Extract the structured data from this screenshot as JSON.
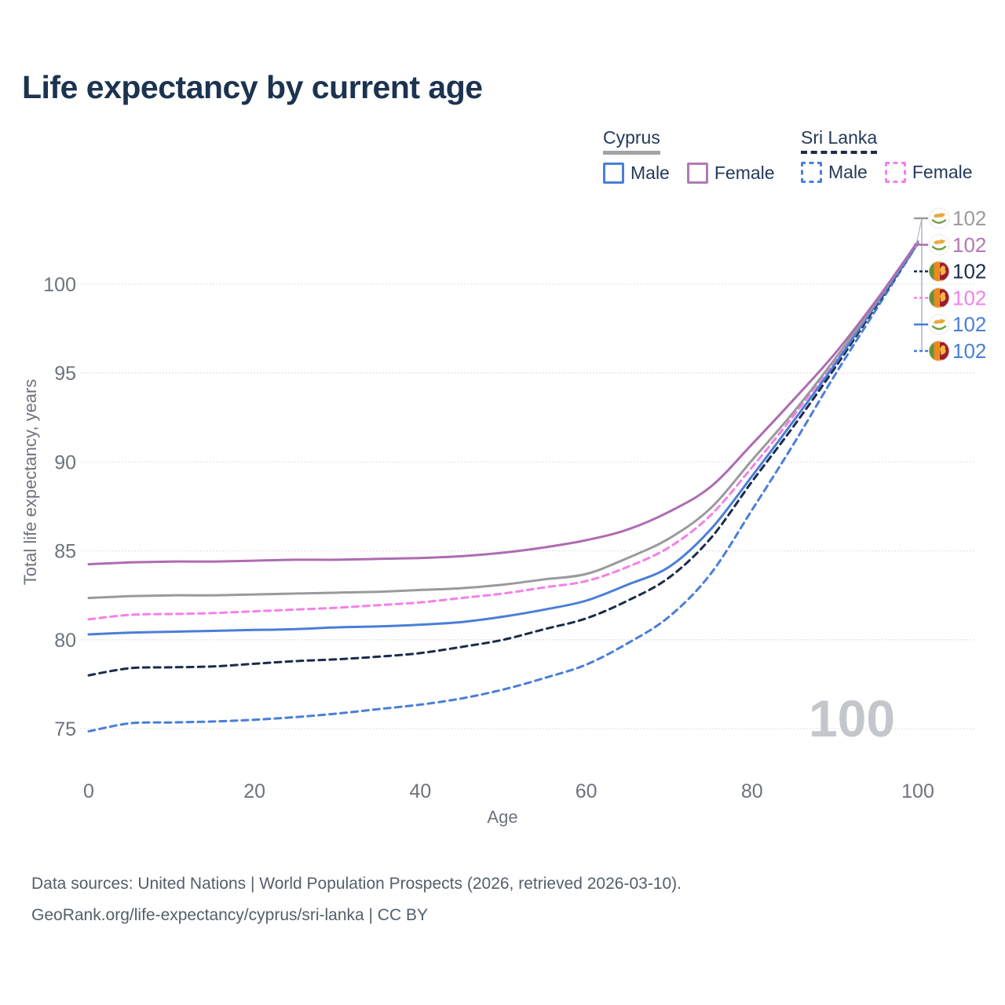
{
  "title": "Life expectancy by current age",
  "watermark": "100",
  "legend": {
    "groups": [
      {
        "country": "Cyprus",
        "style": "solid",
        "items": [
          {
            "label": "Male",
            "color": "#4a7ed8"
          },
          {
            "label": "Female",
            "color": "#b07ab4"
          }
        ]
      },
      {
        "country": "Sri Lanka",
        "style": "dashed",
        "items": [
          {
            "label": "Male",
            "color": "#4a7ed8"
          },
          {
            "label": "Female",
            "color": "#f580e8"
          }
        ]
      }
    ]
  },
  "footer": {
    "line1": "Data sources: United Nations | World Population Prospects (2026, retrieved 2026-03-10).",
    "line2": "GeoRank.org/life-expectancy/cyprus/sri-lanka | CC BY"
  },
  "chart_data": {
    "type": "line",
    "title": "Life expectancy by current age",
    "xlabel": "Age",
    "ylabel": "Total life expectancy, years",
    "xlim": [
      0,
      100
    ],
    "ylim": [
      73.5,
      103.5
    ],
    "x_ticks": [
      0,
      20,
      40,
      60,
      80,
      100
    ],
    "y_ticks": [
      75,
      80,
      85,
      90,
      95,
      100
    ],
    "grid": "horizontal-only",
    "legend_position": "top-right",
    "x": [
      0,
      5,
      10,
      15,
      20,
      25,
      30,
      35,
      40,
      45,
      50,
      55,
      60,
      65,
      70,
      75,
      80,
      85,
      90,
      95,
      100
    ],
    "series": [
      {
        "name": "Sri Lanka Male",
        "country": "Sri Lanka",
        "sex": "male",
        "color": "#4a7ed8",
        "dash": "dashed",
        "end_label": "102",
        "label_color": "#4a7ed8",
        "label_row": 5,
        "values": [
          74.85,
          75.3,
          75.35,
          75.4,
          75.5,
          75.65,
          75.85,
          76.1,
          76.35,
          76.7,
          77.2,
          77.85,
          78.6,
          79.8,
          81.3,
          83.7,
          87.3,
          91.0,
          94.9,
          98.6,
          102.3
        ]
      },
      {
        "name": "Sri Lanka",
        "country": "Sri Lanka",
        "sex": "total",
        "color": "#1b2b4a",
        "dash": "dashed",
        "end_label": "102",
        "label_color": "#1e2c4a",
        "label_row": 2,
        "values": [
          78.0,
          78.4,
          78.45,
          78.5,
          78.65,
          78.8,
          78.9,
          79.05,
          79.25,
          79.6,
          80.0,
          80.6,
          81.2,
          82.2,
          83.5,
          85.7,
          88.9,
          92.0,
          95.3,
          98.8,
          102.3
        ]
      },
      {
        "name": "Sri Lanka Female",
        "country": "Sri Lanka",
        "sex": "female",
        "color": "#f580e8",
        "dash": "dashed",
        "end_label": "102",
        "label_color": "#f580e8",
        "label_row": 3,
        "values": [
          81.15,
          81.4,
          81.45,
          81.5,
          81.6,
          81.7,
          81.8,
          81.95,
          82.1,
          82.35,
          82.6,
          82.95,
          83.3,
          84.1,
          85.2,
          87.0,
          89.7,
          92.6,
          95.7,
          98.9,
          102.4
        ]
      },
      {
        "name": "Cyprus Male",
        "country": "Cyprus",
        "sex": "male",
        "color": "#4a7ed8",
        "dash": "solid",
        "end_label": "102",
        "label_color": "#4a7ed8",
        "label_row": 4,
        "values": [
          80.3,
          80.4,
          80.45,
          80.5,
          80.55,
          80.6,
          80.7,
          80.75,
          80.85,
          81.0,
          81.3,
          81.7,
          82.2,
          83.1,
          84.1,
          86.2,
          89.2,
          92.3,
          95.5,
          98.9,
          102.3
        ]
      },
      {
        "name": "Cyprus",
        "country": "Cyprus",
        "sex": "total",
        "color": "#9a9a9a",
        "dash": "solid",
        "end_label": "102",
        "label_color": "#9b9b9b",
        "label_row": 0,
        "values": [
          82.35,
          82.45,
          82.5,
          82.5,
          82.55,
          82.6,
          82.65,
          82.7,
          82.8,
          82.9,
          83.1,
          83.4,
          83.7,
          84.6,
          85.7,
          87.4,
          90.1,
          92.8,
          95.8,
          99.0,
          102.4
        ]
      },
      {
        "name": "Cyprus Female",
        "country": "Cyprus",
        "sex": "female",
        "color": "#ad6cb2",
        "dash": "solid",
        "end_label": "102",
        "label_color": "#b278b5",
        "label_row": 1,
        "values": [
          84.25,
          84.35,
          84.4,
          84.4,
          84.45,
          84.5,
          84.5,
          84.55,
          84.6,
          84.7,
          84.9,
          85.2,
          85.6,
          86.2,
          87.2,
          88.6,
          91.0,
          93.5,
          96.1,
          99.1,
          102.4
        ]
      }
    ]
  }
}
